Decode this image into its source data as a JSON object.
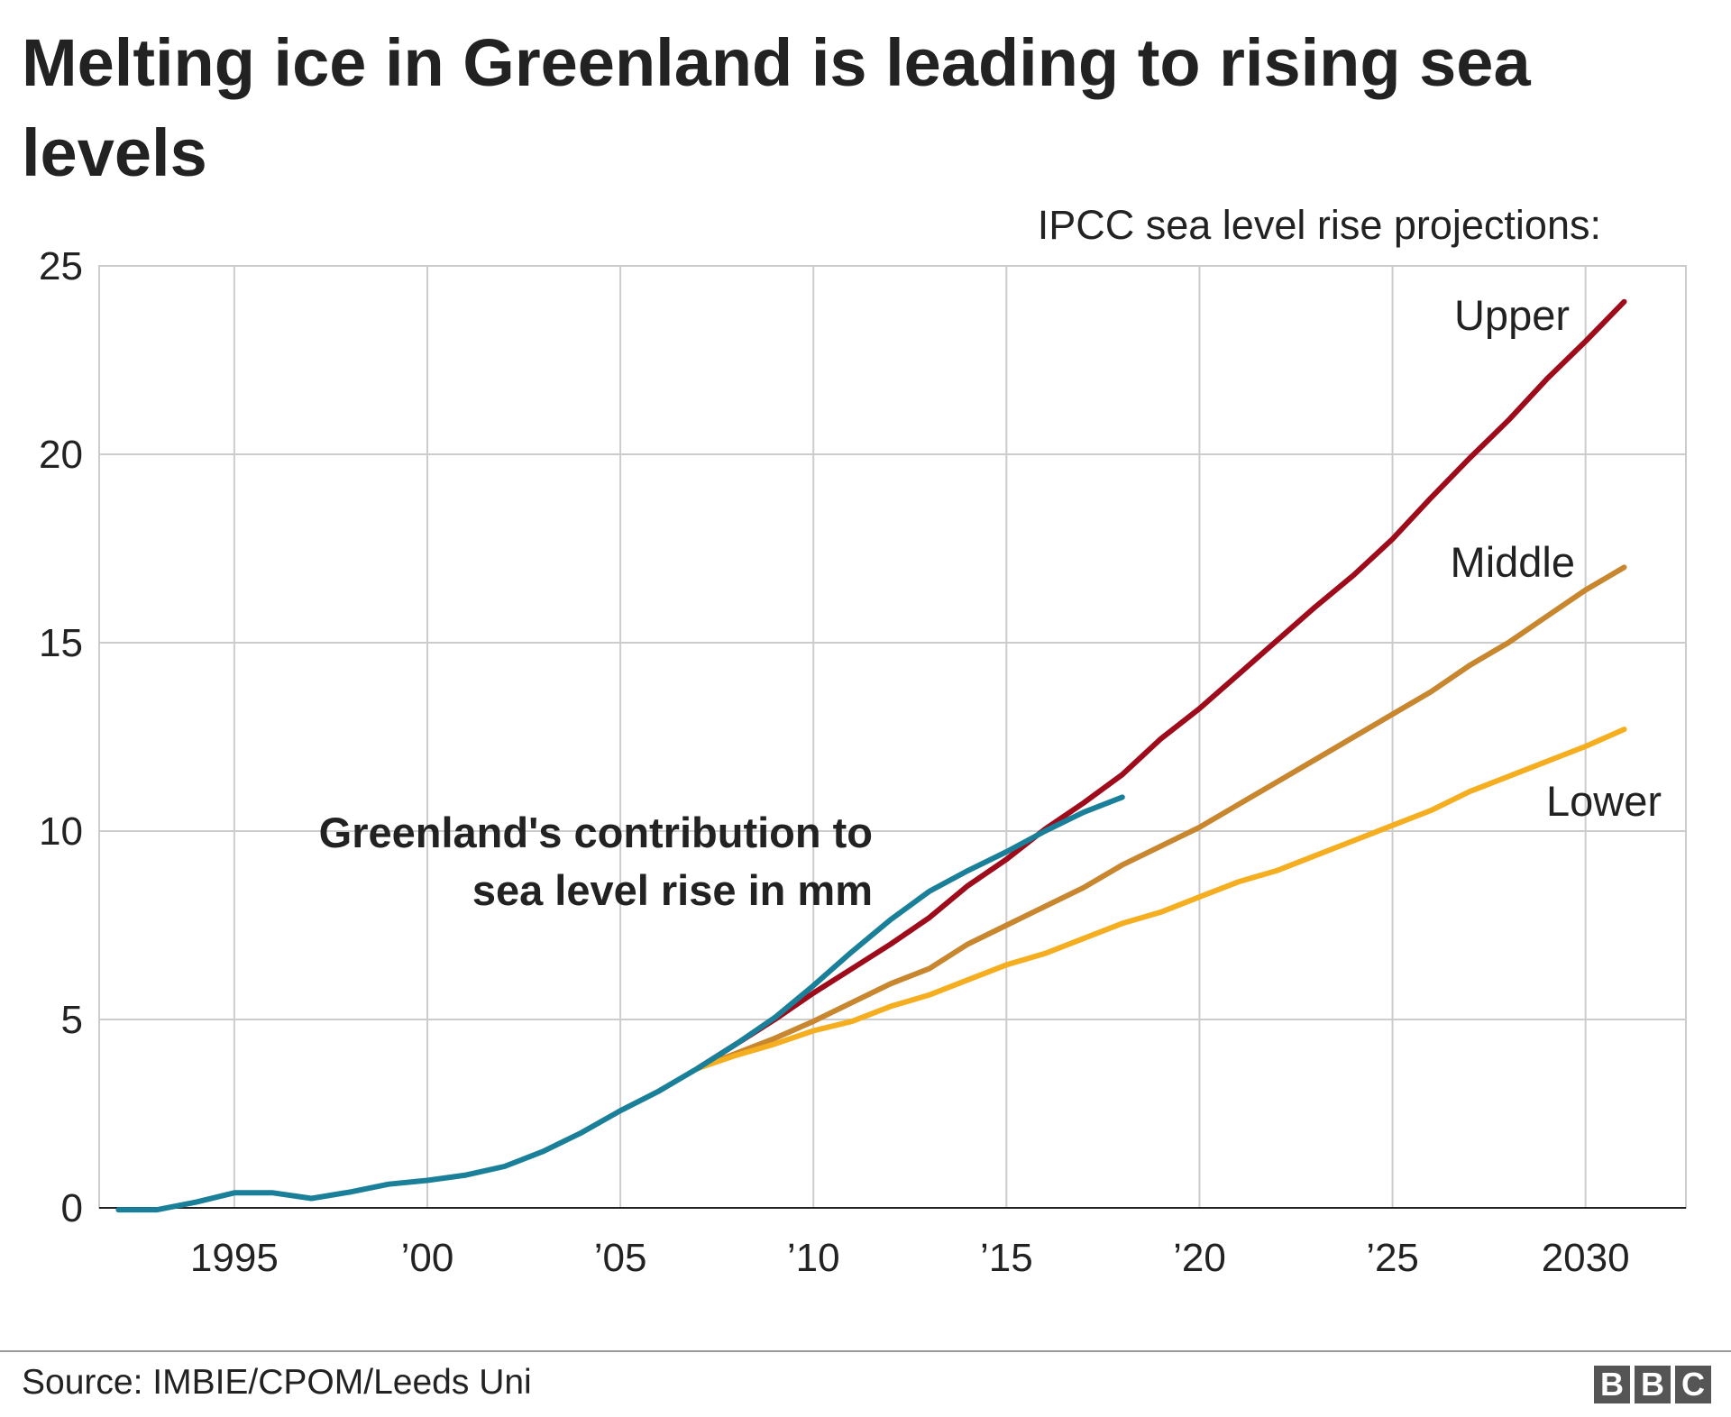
{
  "chart_data": {
    "type": "line",
    "title": "Melting ice in Greenland is leading to rising sea levels",
    "subtitle": "IPCC sea level rise projections:",
    "source": "Source: IMBIE/CPOM/Leeds Uni",
    "logo": [
      "B",
      "B",
      "C"
    ],
    "xlim": [
      1991.5,
      2032.6
    ],
    "xticks": [
      1995,
      {
        "value": 2000,
        "label": "’00"
      },
      {
        "value": 2005,
        "label": "’05"
      },
      {
        "value": 2010,
        "label": "’10"
      },
      {
        "value": 2015,
        "label": "’15"
      },
      {
        "value": 2020,
        "label": "’20"
      },
      {
        "value": 2025,
        "label": "’25"
      },
      2030
    ],
    "ylim": [
      0,
      25
    ],
    "yticks": [
      0,
      5,
      10,
      15,
      20,
      25
    ],
    "grid": true,
    "series": [
      {
        "name": "Upper",
        "color": "#9e0b1a",
        "x": [
          2007,
          2008,
          2009,
          2010,
          2011,
          2012,
          2013,
          2014,
          2015,
          2016,
          2017,
          2018,
          2019,
          2020,
          2021,
          2022,
          2023,
          2024,
          2025,
          2026,
          2027,
          2028,
          2029,
          2030,
          2031
        ],
        "values": [
          3.7,
          4.35,
          5.0,
          5.7,
          6.35,
          7.0,
          7.7,
          8.55,
          9.25,
          10.05,
          10.75,
          11.5,
          12.45,
          13.25,
          14.15,
          15.05,
          15.95,
          16.8,
          17.75,
          18.85,
          19.9,
          20.9,
          22.0,
          23.0,
          24.05
        ]
      },
      {
        "name": "Middle",
        "color": "#c8862f",
        "x": [
          2007,
          2008,
          2009,
          2010,
          2011,
          2012,
          2013,
          2014,
          2015,
          2016,
          2017,
          2018,
          2019,
          2020,
          2021,
          2022,
          2023,
          2024,
          2025,
          2026,
          2027,
          2028,
          2029,
          2030,
          2031
        ],
        "values": [
          3.7,
          4.1,
          4.5,
          4.95,
          5.45,
          5.95,
          6.35,
          7.0,
          7.5,
          8.0,
          8.5,
          9.1,
          9.6,
          10.1,
          10.7,
          11.3,
          11.9,
          12.5,
          13.1,
          13.7,
          14.4,
          15.0,
          15.7,
          16.4,
          17.0
        ]
      },
      {
        "name": "Lower",
        "color": "#f5ae1f",
        "x": [
          2007,
          2008,
          2009,
          2010,
          2011,
          2012,
          2013,
          2014,
          2015,
          2016,
          2017,
          2018,
          2019,
          2020,
          2021,
          2022,
          2023,
          2024,
          2025,
          2026,
          2027,
          2028,
          2029,
          2030,
          2031
        ],
        "values": [
          3.7,
          4.05,
          4.35,
          4.7,
          4.95,
          5.35,
          5.65,
          6.05,
          6.45,
          6.75,
          7.15,
          7.55,
          7.85,
          8.25,
          8.65,
          8.95,
          9.35,
          9.75,
          10.15,
          10.55,
          11.05,
          11.45,
          11.85,
          12.25,
          12.7
        ]
      },
      {
        "name": "Greenland's contribution to sea level rise in mm",
        "color": "#1a7f99",
        "x": [
          1992,
          1993,
          1994,
          1995,
          1996,
          1997,
          1998,
          1999,
          2000,
          2001,
          2002,
          2003,
          2004,
          2005,
          2006,
          2007,
          2008,
          2009,
          2010,
          2011,
          2012,
          2013,
          2014,
          2015,
          2016,
          2017,
          2018
        ],
        "values": [
          -0.05,
          -0.05,
          0.15,
          0.4,
          0.4,
          0.25,
          0.42,
          0.63,
          0.73,
          0.87,
          1.1,
          1.5,
          2.0,
          2.58,
          3.1,
          3.7,
          4.35,
          5.05,
          5.9,
          6.8,
          7.65,
          8.4,
          8.95,
          9.45,
          10.0,
          10.5,
          10.9
        ]
      }
    ]
  }
}
